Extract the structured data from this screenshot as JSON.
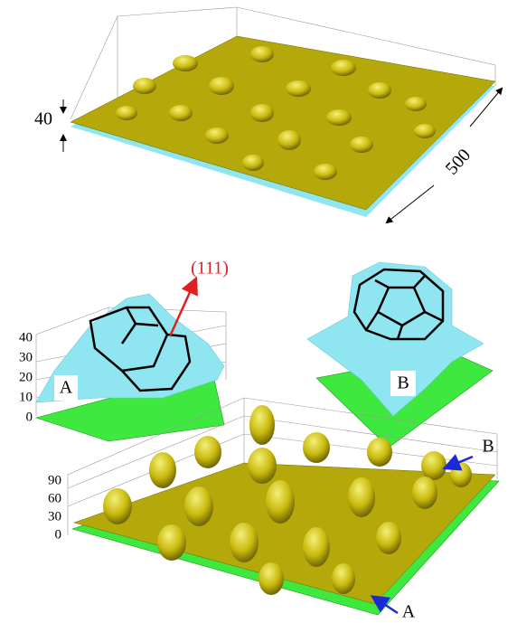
{
  "top": {
    "height_label": "40",
    "size_label": "500"
  },
  "inset_a": {
    "direction": "(111)",
    "label": "A",
    "ticks": [
      "0",
      "10",
      "20",
      "30",
      "40"
    ]
  },
  "inset_b": {
    "label": "B"
  },
  "bottom": {
    "ticks": [
      "0",
      "30",
      "60",
      "90"
    ],
    "marker_b": "B",
    "marker_a": "A"
  }
}
